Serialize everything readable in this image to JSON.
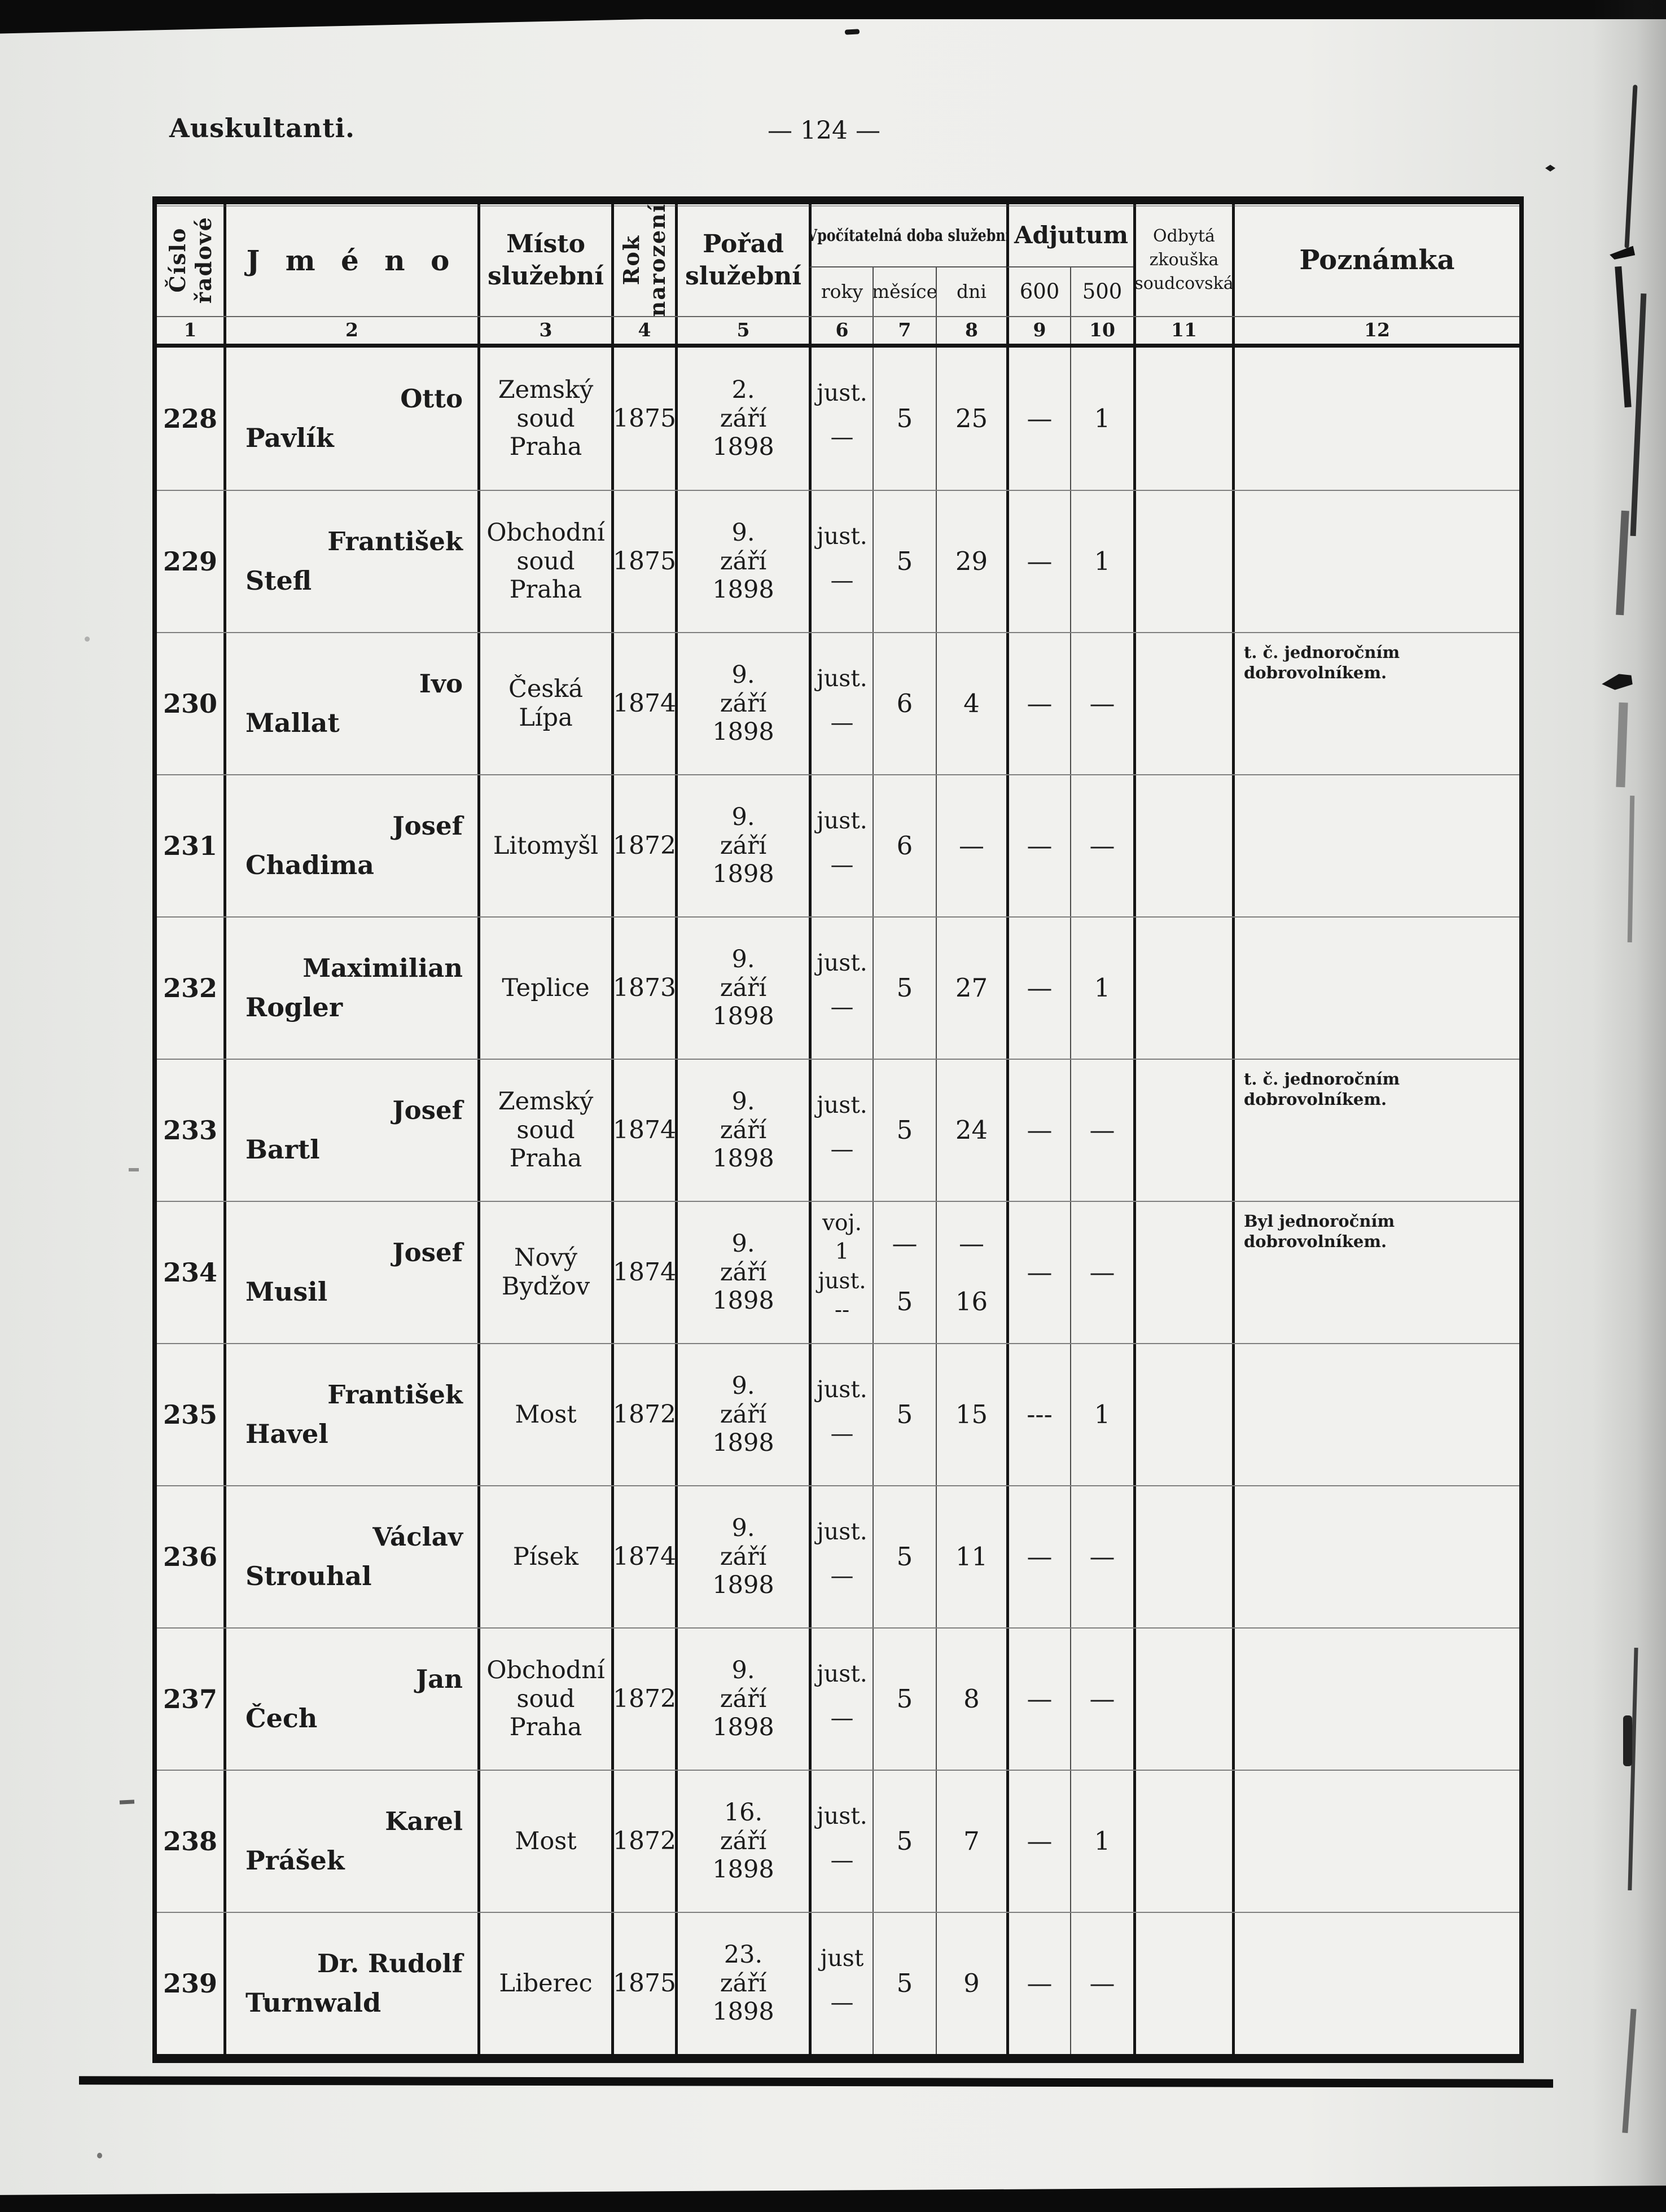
{
  "page": {
    "section_title": "Auskultanti.",
    "page_number": "— 124 —"
  },
  "table": {
    "headers": {
      "col1": "Číslo\nřadové",
      "col2": "J m é n o",
      "col3": "Místo\nslužební",
      "col4": "Rok\nnarození",
      "col5": "Pořad\nslužební",
      "group_service_time": "Vpočítatelná doba služební",
      "sub_roky": "roky",
      "sub_mesice": "měsíce",
      "sub_dni": "dni",
      "group_adjutum": "Adjutum",
      "sub_600": "600",
      "sub_500": "500",
      "col11": "Odbytá\nzkouška\nsoudcovská",
      "col12": "Poznámka",
      "column_numbers": [
        "1",
        "2",
        "3",
        "4",
        "5",
        "6",
        "7",
        "8",
        "9",
        "10",
        "11",
        "12"
      ]
    },
    "rows": [
      {
        "number": "228",
        "surname": "Pavlík",
        "firstname": "Otto",
        "place": "Zemský\nsoud\nPraha",
        "birth_year": "1875",
        "order": "2.\nzáří\n1898",
        "roky": "just.\n—",
        "mesice": "5",
        "dni": "25",
        "a600": "—",
        "a500": "1",
        "exam": "",
        "note": ""
      },
      {
        "number": "229",
        "surname": "Stefl",
        "firstname": "František",
        "place": "Obchodní\nsoud\nPraha",
        "birth_year": "1875",
        "order": "9.\nzáří\n1898",
        "roky": "just.\n—",
        "mesice": "5",
        "dni": "29",
        "a600": "—",
        "a500": "1",
        "exam": "",
        "note": ""
      },
      {
        "number": "230",
        "surname": "Mallat",
        "firstname": "Ivo",
        "place": "Česká\nLípa",
        "birth_year": "1874",
        "order": "9.\nzáří\n1898",
        "roky": "just.\n—",
        "mesice": "6",
        "dni": "4",
        "a600": "—",
        "a500": "—",
        "exam": "",
        "note": "t. č. jednoročním dobrovolníkem."
      },
      {
        "number": "231",
        "surname": "Chadima",
        "firstname": "Josef",
        "place": "Litomyšl",
        "birth_year": "1872",
        "order": "9.\nzáří\n1898",
        "roky": "just.\n—",
        "mesice": "6",
        "dni": "—",
        "a600": "—",
        "a500": "—",
        "exam": "",
        "note": ""
      },
      {
        "number": "232",
        "surname": "Rogler",
        "firstname": "Maximilian",
        "place": "Teplice",
        "birth_year": "1873",
        "order": "9.\nzáří\n1898",
        "roky": "just.\n—",
        "mesice": "5",
        "dni": "27",
        "a600": "—",
        "a500": "1",
        "exam": "",
        "note": ""
      },
      {
        "number": "233",
        "surname": "Bartl",
        "firstname": "Josef",
        "place": "Zemský\nsoud\nPraha",
        "birth_year": "1874",
        "order": "9.\nzáří\n1898",
        "roky": "just.\n—",
        "mesice": "5",
        "dni": "24",
        "a600": "—",
        "a500": "—",
        "exam": "",
        "note": "t. č. jednoročním dobrovolníkem."
      },
      {
        "number": "234",
        "surname": "Musil",
        "firstname": "Josef",
        "place": "Nový\nBydžov",
        "birth_year": "1874",
        "order": "9.\nzáří\n1898",
        "roky": "voj.\n1\njust.\n--",
        "mesice": "—\n5",
        "dni": "—\n16",
        "a600": "—",
        "a500": "—",
        "exam": "",
        "note": "Byl jednoročním dobrovolníkem."
      },
      {
        "number": "235",
        "surname": "Havel",
        "firstname": "František",
        "place": "Most",
        "birth_year": "1872",
        "order": "9.\nzáří\n1898",
        "roky": "just.\n—",
        "mesice": "5",
        "dni": "15",
        "a600": "---",
        "a500": "1",
        "exam": "",
        "note": ""
      },
      {
        "number": "236",
        "surname": "Strouhal",
        "firstname": "Václav",
        "place": "Písek",
        "birth_year": "1874",
        "order": "9.\nzáří\n1898",
        "roky": "just.\n—",
        "mesice": "5",
        "dni": "11",
        "a600": "—",
        "a500": "—",
        "exam": "",
        "note": ""
      },
      {
        "number": "237",
        "surname": "Čech",
        "firstname": "Jan",
        "place": "Obchodní\nsoud\nPraha",
        "birth_year": "1872",
        "order": "9.\nzáří\n1898",
        "roky": "just.\n—",
        "mesice": "5",
        "dni": "8",
        "a600": "—",
        "a500": "—",
        "exam": "",
        "note": ""
      },
      {
        "number": "238",
        "surname": "Prášek",
        "firstname": "Karel",
        "place": "Most",
        "birth_year": "1872",
        "order": "16.\nzáří\n1898",
        "roky": "just.\n—",
        "mesice": "5",
        "dni": "7",
        "a600": "—",
        "a500": "1",
        "exam": "",
        "note": ""
      },
      {
        "number": "239",
        "surname": "Turnwald",
        "firstname": "Dr. Rudolf",
        "place": "Liberec",
        "birth_year": "1875",
        "order": "23.\nzáří\n1898",
        "roky": "just\n—",
        "mesice": "5",
        "dni": "9",
        "a600": "—",
        "a500": "—",
        "exam": "",
        "note": ""
      }
    ]
  }
}
